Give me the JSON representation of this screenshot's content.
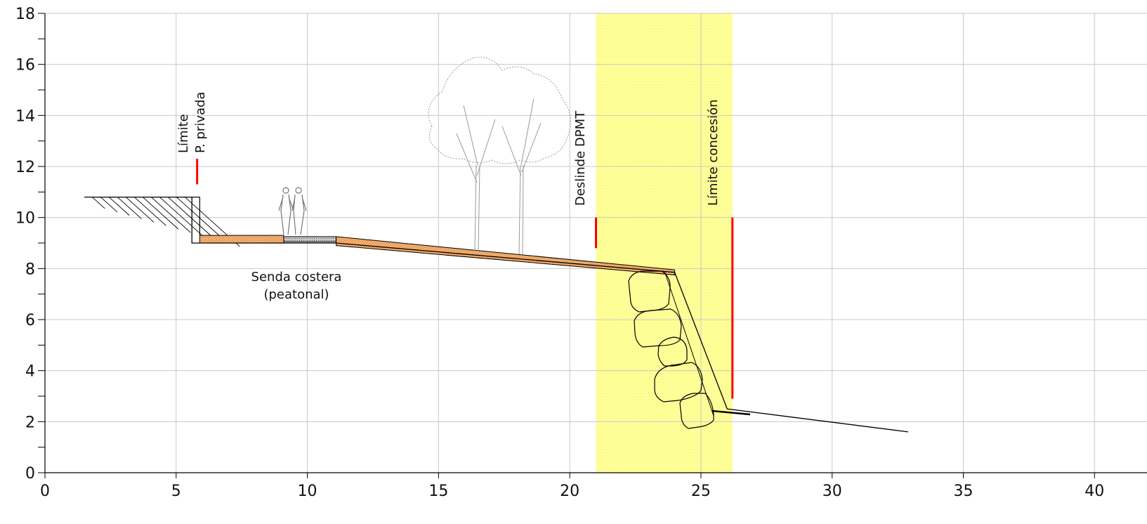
{
  "chart_data": {
    "type": "line",
    "xlim": [
      0,
      42
    ],
    "ylim": [
      0,
      18
    ],
    "x_ticks": [
      0,
      5,
      10,
      15,
      20,
      25,
      30,
      35,
      40
    ],
    "y_ticks": [
      0,
      2,
      4,
      6,
      8,
      10,
      12,
      14,
      16,
      18
    ],
    "grid": true,
    "annotations": [
      {
        "id": "private-limit",
        "lines": [
          "Límite",
          "P. privada"
        ],
        "x": 5.8,
        "marker_y": [
          11.3,
          12.3
        ]
      },
      {
        "id": "dpmt",
        "lines": [
          "Deslinde DPMT"
        ],
        "x": 21.0,
        "marker_y": [
          8.8,
          10.0
        ]
      },
      {
        "id": "concession",
        "lines": [
          "Límite concesión"
        ],
        "x": 26.2,
        "marker_y": [
          2.9,
          10.0
        ]
      },
      {
        "id": "path",
        "lines": [
          "Senda costera",
          "(peatonal)"
        ],
        "x": 9.8,
        "y": 7.6
      }
    ],
    "highlight_band": {
      "x": [
        21.0,
        26.2
      ],
      "color": "#ffff99"
    },
    "profile": [
      {
        "x": 1.5,
        "y": 10.8
      },
      {
        "x": 5.6,
        "y": 10.8
      },
      {
        "x": 5.6,
        "y": 9.0
      },
      {
        "x": 9.1,
        "y": 9.0
      },
      {
        "x": 11.1,
        "y": 9.0
      },
      {
        "x": 24.0,
        "y": 7.85
      },
      {
        "x": 26.0,
        "y": 2.5
      },
      {
        "x": 32.9,
        "y": 1.6
      }
    ],
    "surfaces": [
      {
        "id": "orange-path-1",
        "material": "paving",
        "x": [
          5.9,
          9.1
        ],
        "y_top": 9.3,
        "y_bottom": 9.0
      },
      {
        "id": "grey-path",
        "material": "gravel",
        "x": [
          9.1,
          11.1
        ],
        "y_top": 9.25,
        "y_bottom": 9.05
      },
      {
        "id": "orange-path-2",
        "material": "paving",
        "x": [
          11.1,
          24.0
        ],
        "y_top_start": 9.25,
        "y_top_end": 7.95,
        "y_bottom_start": 8.9,
        "y_bottom_end": 7.75
      }
    ],
    "colors": {
      "limit_marker": "#ff0000",
      "paving": "#f2a060",
      "gravel": "#999999",
      "band": "#ffff99",
      "grid": "#c8c8c8"
    }
  }
}
